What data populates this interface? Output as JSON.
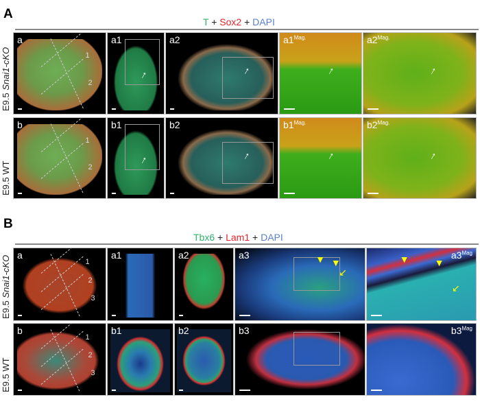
{
  "panelA": {
    "letter": "A",
    "title": [
      {
        "text": "T",
        "color": "#2fb36b"
      },
      {
        "text": " + ",
        "color": "#222"
      },
      {
        "text": "Sox2",
        "color": "#e8232b"
      },
      {
        "text": " + ",
        "color": "#222"
      },
      {
        "text": "DAPI",
        "color": "#5a7fd0"
      }
    ],
    "row_labels": [
      {
        "prefix": "E9.5 ",
        "italic": "Snai1-cKO"
      },
      {
        "prefix": "E9.5 WT",
        "italic": ""
      }
    ],
    "panels": [
      "a",
      "a1",
      "a2",
      "a1",
      "a2",
      "b",
      "b1",
      "b2",
      "b1",
      "b2"
    ],
    "mag": "Mag.",
    "section_numbers": [
      "1",
      "2"
    ]
  },
  "panelB": {
    "letter": "B",
    "title": [
      {
        "text": "Tbx6",
        "color": "#2fb36b"
      },
      {
        "text": " + ",
        "color": "#222"
      },
      {
        "text": "Lam1",
        "color": "#e8232b"
      },
      {
        "text": " + ",
        "color": "#222"
      },
      {
        "text": "DAPI",
        "color": "#5a7fd0"
      }
    ],
    "row_labels": [
      {
        "prefix": "E9.5 ",
        "italic": "Snai1-cKO"
      },
      {
        "prefix": "E9.5 WT",
        "italic": ""
      }
    ],
    "panels": [
      "a",
      "a1",
      "a2",
      "a3",
      "a3",
      "b",
      "b1",
      "b2",
      "b3",
      "b3"
    ],
    "mag": "Mag",
    "section_numbers": [
      "1",
      "2",
      "3"
    ]
  }
}
